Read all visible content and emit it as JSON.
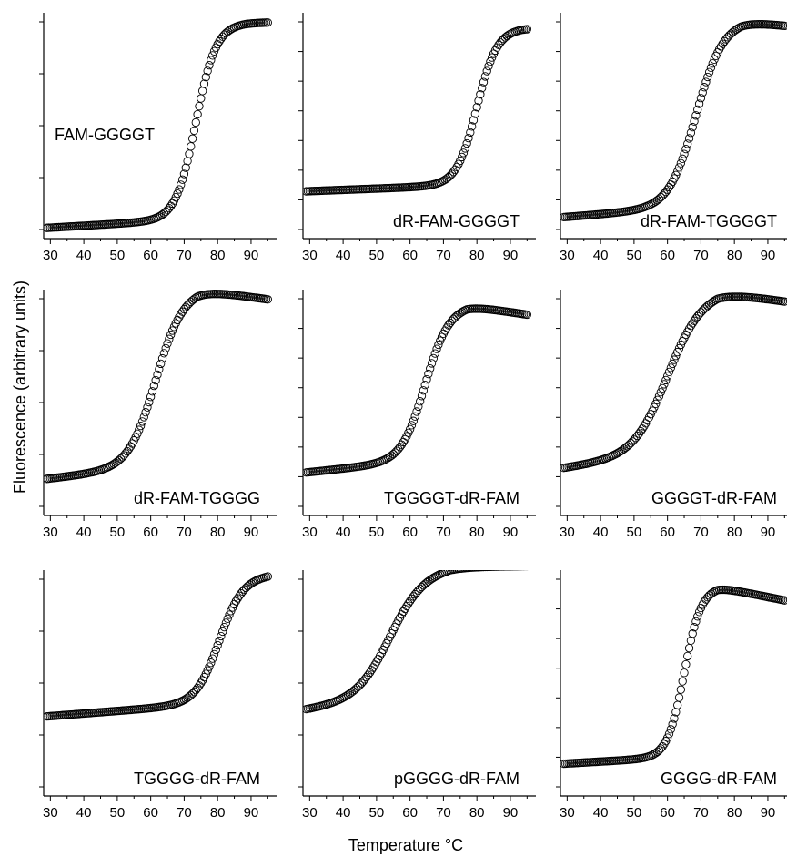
{
  "figure": {
    "ylabel": "Fluorescence (arbitrary units)",
    "xlabel": "Temperature °C"
  },
  "chart_data": [
    {
      "type": "scatter",
      "label": "FAM-GGGGT",
      "label_position": "middle-left",
      "xlim": [
        28,
        96
      ],
      "ylim": [
        0,
        1.05
      ],
      "x_ticks": [
        30,
        40,
        50,
        60,
        70,
        80,
        90
      ],
      "y_tick_count": 5,
      "marker": "open-circle",
      "curve": {
        "x_start": 29,
        "x_end": 95,
        "step": 0.5,
        "baseline": 0.05,
        "baseline_slope": 0.0009,
        "amplitude": 0.9,
        "tm": 73.5,
        "width": 3.0,
        "decline": 0.0006,
        "plateau_at": 88
      }
    },
    {
      "type": "scatter",
      "label": "dR-FAM-GGGGT",
      "label_position": "bottom-right",
      "xlim": [
        28,
        96
      ],
      "ylim": [
        0,
        1.05
      ],
      "x_ticks": [
        30,
        40,
        50,
        60,
        70,
        80,
        90
      ],
      "y_tick_count": 8,
      "marker": "open-circle",
      "curve": {
        "x_start": 29,
        "x_end": 95,
        "step": 0.5,
        "baseline": 0.22,
        "baseline_slope": 0.0006,
        "amplitude": 0.72,
        "tm": 80.0,
        "width": 3.0,
        "decline": 0.0006,
        "plateau_at": 93
      }
    },
    {
      "type": "scatter",
      "label": "dR-FAM-TGGGGT",
      "label_position": "bottom-right",
      "xlim": [
        28,
        96
      ],
      "ylim": [
        0,
        1.05
      ],
      "x_ticks": [
        30,
        40,
        50,
        60,
        70,
        80,
        90
      ],
      "y_tick_count": 8,
      "marker": "open-circle",
      "curve": {
        "x_start": 29,
        "x_end": 95,
        "step": 0.5,
        "baseline": 0.1,
        "baseline_slope": 0.0012,
        "amplitude": 0.85,
        "tm": 68.5,
        "width": 4.0,
        "decline": 0.003,
        "plateau_at": 82
      }
    },
    {
      "type": "scatter",
      "label": "dR-FAM-TGGGG",
      "label_position": "bottom-right",
      "xlim": [
        28,
        96
      ],
      "ylim": [
        0,
        1.05
      ],
      "x_ticks": [
        30,
        40,
        50,
        60,
        70,
        80,
        90
      ],
      "y_tick_count": 5,
      "marker": "open-circle",
      "curve": {
        "x_start": 29,
        "x_end": 95,
        "step": 0.5,
        "baseline": 0.17,
        "baseline_slope": 0.0018,
        "amplitude": 0.8,
        "tm": 61.5,
        "width": 4.0,
        "decline": 0.004,
        "plateau_at": 74
      }
    },
    {
      "type": "scatter",
      "label": "TGGGGT-dR-FAM",
      "label_position": "bottom-right",
      "xlim": [
        28,
        96
      ],
      "ylim": [
        0,
        1.05
      ],
      "x_ticks": [
        30,
        40,
        50,
        60,
        70,
        80,
        90
      ],
      "y_tick_count": 8,
      "marker": "open-circle",
      "curve": {
        "x_start": 29,
        "x_end": 95,
        "step": 0.5,
        "baseline": 0.2,
        "baseline_slope": 0.0016,
        "amplitude": 0.7,
        "tm": 64.5,
        "width": 3.5,
        "decline": 0.004,
        "plateau_at": 77
      }
    },
    {
      "type": "scatter",
      "label": "GGGGT-dR-FAM",
      "label_position": "bottom-right",
      "xlim": [
        28,
        96
      ],
      "ylim": [
        0,
        1.05
      ],
      "x_ticks": [
        30,
        40,
        50,
        60,
        70,
        80,
        90
      ],
      "y_tick_count": 8,
      "marker": "open-circle",
      "curve": {
        "x_start": 29,
        "x_end": 95,
        "step": 0.5,
        "baseline": 0.22,
        "baseline_slope": 0.0022,
        "amplitude": 0.72,
        "tm": 60.0,
        "width": 5.0,
        "decline": 0.0045,
        "plateau_at": 75
      }
    },
    {
      "type": "scatter",
      "label": "TGGGG-dR-FAM",
      "label_position": "bottom-right",
      "xlim": [
        28,
        96
      ],
      "ylim": [
        0,
        1.05
      ],
      "x_ticks": [
        30,
        40,
        50,
        60,
        70,
        80,
        90
      ],
      "y_tick_count": 5,
      "marker": "open-circle",
      "curve": {
        "x_start": 29,
        "x_end": 95,
        "step": 0.5,
        "baseline": 0.37,
        "baseline_slope": 0.0012,
        "amplitude": 0.58,
        "tm": 80.5,
        "width": 3.5,
        "decline": 0.0,
        "plateau_at": 95
      }
    },
    {
      "type": "scatter",
      "label": "pGGGG-dR-FAM",
      "label_position": "bottom-right",
      "xlim": [
        28,
        96
      ],
      "ylim": [
        0,
        1.05
      ],
      "x_ticks": [
        30,
        40,
        50,
        60,
        70,
        80,
        90
      ],
      "y_tick_count": 5,
      "marker": "open-circle",
      "curve": {
        "x_start": 29,
        "x_end": 95,
        "step": 0.5,
        "baseline": 0.4,
        "baseline_slope": 0.0022,
        "amplitude": 0.57,
        "tm": 54.0,
        "width": 5.0,
        "decline": 0.002,
        "plateau_at": 72
      }
    },
    {
      "type": "scatter",
      "label": "GGGG-dR-FAM",
      "label_position": "bottom-right",
      "xlim": [
        28,
        96
      ],
      "ylim": [
        0,
        1.05
      ],
      "x_ticks": [
        30,
        40,
        50,
        60,
        70,
        80,
        90
      ],
      "y_tick_count": 8,
      "marker": "open-circle",
      "curve": {
        "x_start": 29,
        "x_end": 95,
        "step": 0.5,
        "baseline": 0.15,
        "baseline_slope": 0.0009,
        "amplitude": 0.78,
        "tm": 65.0,
        "width": 2.5,
        "decline": 0.004,
        "plateau_at": 75
      }
    }
  ]
}
